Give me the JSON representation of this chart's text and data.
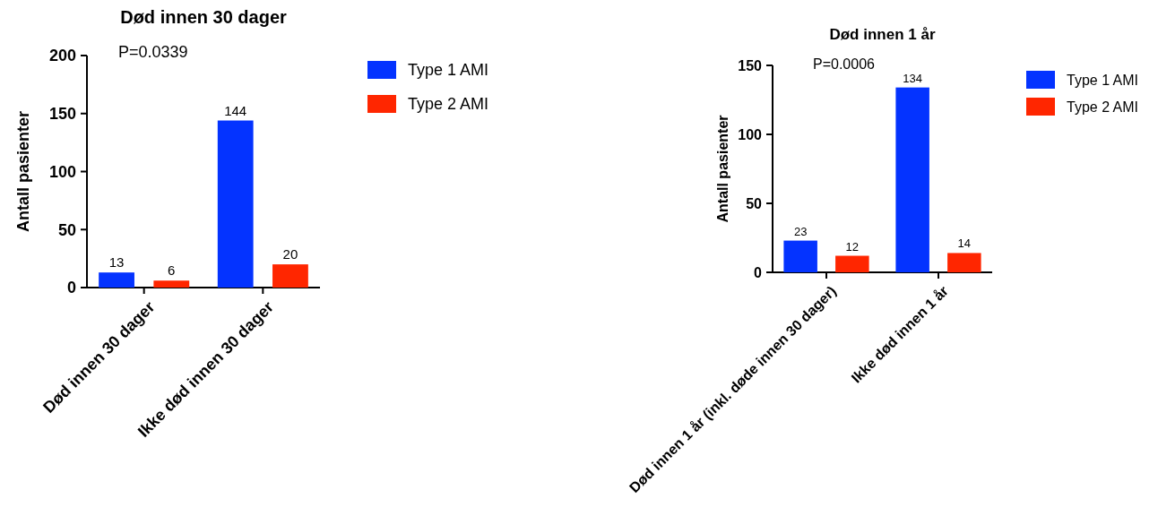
{
  "chart_data": [
    {
      "type": "bar",
      "title": "Død innen 30 dager",
      "ylabel": "Antall pasienter",
      "annotations": [
        "P=0.0339"
      ],
      "categories": [
        "Død innen 30 dager",
        "Ikke død innen 30 dager"
      ],
      "series": [
        {
          "name": "Type 1 AMI",
          "color": "#0433ff",
          "values": [
            13,
            144
          ]
        },
        {
          "name": "Type 2 AMI",
          "color": "#ff2600",
          "values": [
            6,
            20
          ]
        }
      ],
      "ylim": [
        0,
        200
      ],
      "yticks": [
        0,
        50,
        100,
        150,
        200
      ],
      "data_labels": true,
      "legend": "right",
      "grid": false
    },
    {
      "type": "bar",
      "title": "Død innen 1 år",
      "ylabel": "Antall pasienter",
      "annotations": [
        "P=0.0006"
      ],
      "categories": [
        "Død innen 1 år (inkl. døde innen 30 dager)",
        "Ikke død innen 1 år"
      ],
      "series": [
        {
          "name": "Type 1 AMI",
          "color": "#0433ff",
          "values": [
            23,
            134
          ]
        },
        {
          "name": "Type 2 AMI",
          "color": "#ff2600",
          "values": [
            12,
            14
          ]
        }
      ],
      "ylim": [
        0,
        150
      ],
      "yticks": [
        0,
        50,
        100,
        150
      ],
      "data_labels": true,
      "legend": "right",
      "grid": false
    }
  ]
}
